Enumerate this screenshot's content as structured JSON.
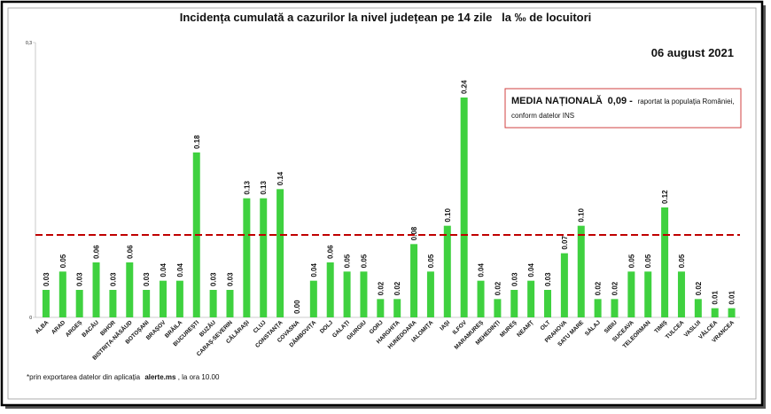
{
  "chart_data": {
    "type": "bar",
    "title": "Incidența cumulată a cazurilor la nivel județean pe 14 zile   la ‰ de locuitori",
    "subtitle": "06 august 2021",
    "categories": [
      "ALBA",
      "ARAD",
      "ARGEȘ",
      "BACĂU",
      "BIHOR",
      "BISTRIȚA-NĂSĂUD",
      "BOTOȘANI",
      "BRAȘOV",
      "BRĂILA",
      "BUCUREȘTI",
      "BUZĂU",
      "CARAȘ-SEVERIN",
      "CĂLĂRAȘI",
      "CLUJ",
      "CONSTANȚA",
      "COVASNA",
      "DÂMBOVIȚA",
      "DOLJ",
      "GALAȚI",
      "GIURGIU",
      "GORJ",
      "HARGHITA",
      "HUNEDOARA",
      "IALOMIȚA",
      "IAȘI",
      "ILFOV",
      "MARAMUREȘ",
      "MEHEDINȚI",
      "MUREȘ",
      "NEAMȚ",
      "OLT",
      "PRAHOVA",
      "SATU MARE",
      "SĂLAJ",
      "SIBIU",
      "SUCEAVA",
      "TELEORMAN",
      "TIMIȘ",
      "TULCEA",
      "VASLUI",
      "VÂLCEA",
      "VRANCEA"
    ],
    "values": [
      0.03,
      0.05,
      0.03,
      0.06,
      0.03,
      0.06,
      0.03,
      0.04,
      0.04,
      0.18,
      0.03,
      0.03,
      0.13,
      0.13,
      0.14,
      0,
      0.04,
      0.06,
      0.05,
      0.05,
      0.02,
      0.02,
      0.08,
      0.05,
      0.1,
      0.24,
      0.04,
      0.02,
      0.03,
      0.04,
      0.03,
      0.07,
      0.1,
      0.02,
      0.02,
      0.05,
      0.05,
      0.12,
      0.05,
      0.02,
      0.01,
      0.01
    ],
    "value_labels": [
      "0.03",
      "0.05",
      "0.03",
      "0.06",
      "0.03",
      "0.06",
      "0.03",
      "0.04",
      "0.04",
      "0.18",
      "0.03",
      "0.03",
      "0.13",
      "0.13",
      "0.14",
      "0.00",
      "0.04",
      "0.06",
      "0.05",
      "0.05",
      "0.02",
      "0.02",
      "0.08",
      "0.05",
      "0.10",
      "0.24",
      "0.04",
      "0.02",
      "0.03",
      "0.04",
      "0.03",
      "0.07",
      "0.10",
      "0.02",
      "0.02",
      "0.05",
      "0.05",
      "0.12",
      "0.05",
      "0.02",
      "0.01",
      "0.01"
    ],
    "color": "#3fd13f",
    "ylim": [
      0,
      0.3
    ],
    "yticks": [
      0,
      {
        "value": 0.3,
        "label": "0,3"
      }
    ],
    "average": {
      "name": "MEDIA NAȚIONALĂ",
      "value": 0.09,
      "value_label": "0,09 -",
      "color": "#c00000",
      "note": [
        "raportat la populația României,",
        "conform datelor INS"
      ]
    },
    "footnote": [
      "*prin exportarea datelor din aplicația",
      "alerte.ms",
      ", la ora 10.00"
    ]
  }
}
